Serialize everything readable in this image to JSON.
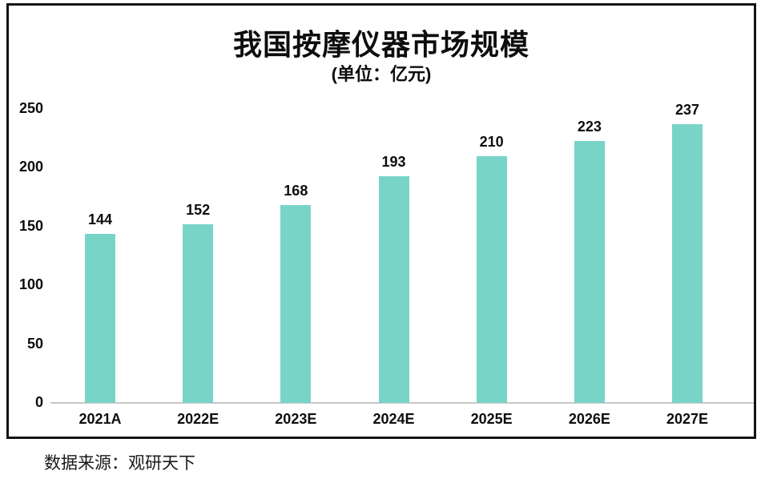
{
  "chart_data": {
    "type": "bar",
    "title": "我国按摩仪器市场规模",
    "subtitle": "(单位：亿元)",
    "categories": [
      "2021A",
      "2022E",
      "2023E",
      "2024E",
      "2025E",
      "2026E",
      "2027E"
    ],
    "values": [
      144,
      152,
      168,
      193,
      210,
      223,
      237
    ],
    "xlabel": "",
    "ylabel": "",
    "ylim": [
      0,
      250
    ],
    "y_ticks": [
      0,
      50,
      100,
      150,
      200,
      250
    ],
    "bar_color": "#79d4c8",
    "value_labels": true,
    "grid": false,
    "legend": false,
    "source": "数据来源：观研天下"
  }
}
